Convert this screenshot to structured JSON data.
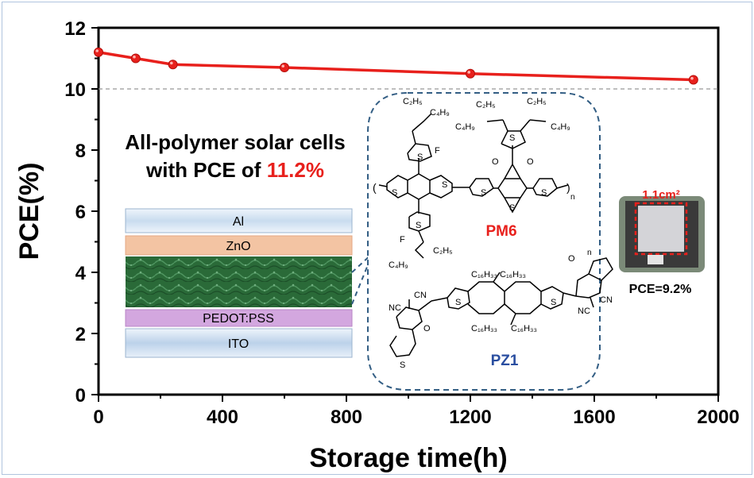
{
  "chart_data": {
    "type": "line",
    "xlabel": "Storage time(h)",
    "ylabel": "PCE(%)",
    "xlim": [
      0,
      2000
    ],
    "ylim": [
      0,
      12
    ],
    "xticks": [
      0,
      400,
      800,
      1200,
      1600,
      2000
    ],
    "yticks": [
      0,
      2,
      4,
      6,
      8,
      10,
      12
    ],
    "x_tick_labels": [
      "0",
      "400",
      "800",
      "1200",
      "1600",
      "2000"
    ],
    "y_tick_labels": [
      "0",
      "2",
      "4",
      "6",
      "8",
      "10",
      "12"
    ],
    "series": [
      {
        "color": "#e8201c",
        "x": [
          0,
          120,
          240,
          600,
          1200,
          1920
        ],
        "y": [
          11.2,
          11.0,
          10.8,
          10.7,
          10.5,
          10.3
        ]
      }
    ],
    "reference_line": {
      "y": 10,
      "style": "dashed",
      "color": "#999999"
    },
    "grid": false,
    "legend": "none"
  },
  "headline": {
    "line1": "All-polymer solar cells",
    "line2_prefix": "with PCE of ",
    "line2_highlight": "11.2%",
    "highlight_color": "#e8201c"
  },
  "device_stack": {
    "layers": [
      "Al",
      "ZnO",
      "PEDOT:PSS",
      "ITO"
    ],
    "active_layer_color": "#2a6a38"
  },
  "molecules": {
    "donor_name": "PM6",
    "donor_color": "#e8201c",
    "acceptor_name": "PZ1",
    "acceptor_color": "#2a4ea0",
    "labels": {
      "c2h5": "C₂H₅",
      "c4h9": "C₄H₉",
      "c16h33": "C₁₆H₃₃",
      "f": "F",
      "s": "S",
      "o": "O",
      "cn": "CN",
      "nc": "NC",
      "n": "n"
    }
  },
  "device_photo": {
    "area_label": "1.1cm²",
    "pce_label": "PCE=9.2%"
  }
}
